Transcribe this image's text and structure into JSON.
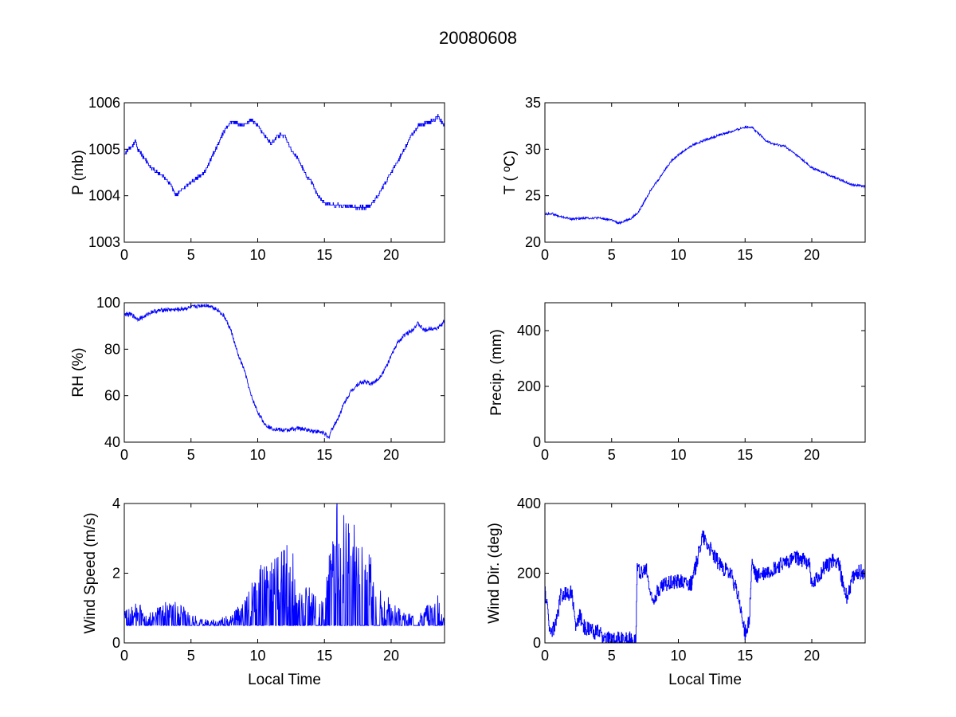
{
  "figure_title": "20080608",
  "colors": {
    "line": "#0000ff",
    "axes": "#000000",
    "background": "#ffffff"
  },
  "chart_data": [
    {
      "id": "pressure",
      "type": "line",
      "title": "",
      "xlabel": "",
      "ylabel": "P (mb)",
      "xlim": [
        0,
        24
      ],
      "ylim": [
        1003,
        1006
      ],
      "xticks": [
        0,
        5,
        10,
        15,
        20
      ],
      "yticks": [
        1003,
        1004,
        1005,
        1006
      ],
      "style": "step",
      "noise": 0.035,
      "series": [
        {
          "name": "P",
          "x": [
            0,
            0.3,
            0.7,
            0.8,
            1.0,
            1.5,
            2.0,
            2.5,
            3.0,
            3.5,
            3.9,
            4.2,
            5.0,
            5.5,
            6.0,
            6.5,
            7.0,
            7.5,
            8.0,
            9.0,
            9.5,
            10.0,
            10.5,
            11.0,
            11.5,
            12.0,
            12.5,
            13.0,
            13.5,
            14.0,
            14.5,
            15.0,
            15.5,
            16.0,
            17.0,
            18.0,
            18.5,
            19.0,
            20.0,
            21.0,
            21.5,
            22.0,
            23.0,
            23.5,
            24.0
          ],
          "y": [
            1004.9,
            1005.0,
            1005.1,
            1005.2,
            1005.0,
            1004.8,
            1004.6,
            1004.5,
            1004.4,
            1004.2,
            1004.0,
            1004.1,
            1004.3,
            1004.4,
            1004.5,
            1004.8,
            1005.1,
            1005.4,
            1005.6,
            1005.5,
            1005.65,
            1005.5,
            1005.3,
            1005.1,
            1005.3,
            1005.3,
            1005.0,
            1004.8,
            1004.5,
            1004.3,
            1004.0,
            1003.85,
            1003.8,
            1003.8,
            1003.75,
            1003.75,
            1003.8,
            1004.0,
            1004.5,
            1005.0,
            1005.3,
            1005.5,
            1005.6,
            1005.7,
            1005.5
          ]
        }
      ]
    },
    {
      "id": "temperature",
      "type": "line",
      "title": "",
      "xlabel": "",
      "ylabel": "T ( ºC)",
      "xlim": [
        0,
        24
      ],
      "ylim": [
        20,
        35
      ],
      "xticks": [
        0,
        5,
        10,
        15,
        20
      ],
      "yticks": [
        20,
        25,
        30,
        35
      ],
      "style": "line",
      "noise": 0.12,
      "series": [
        {
          "name": "T",
          "x": [
            0,
            0.5,
            1.0,
            2.0,
            3.0,
            4.0,
            5.0,
            5.5,
            6.0,
            6.5,
            7.0,
            7.5,
            8.0,
            8.5,
            9.0,
            9.5,
            10.0,
            11.0,
            12.0,
            13.0,
            14.0,
            15.0,
            15.5,
            16.0,
            16.5,
            17.0,
            18.0,
            19.0,
            20.0,
            21.0,
            22.0,
            23.0,
            24.0
          ],
          "y": [
            23.0,
            23.1,
            22.8,
            22.5,
            22.6,
            22.6,
            22.4,
            22.0,
            22.3,
            22.6,
            23.2,
            24.5,
            25.8,
            26.7,
            27.8,
            28.8,
            29.4,
            30.4,
            31.0,
            31.5,
            31.9,
            32.4,
            32.4,
            31.7,
            31.0,
            30.6,
            30.3,
            29.2,
            28.0,
            27.4,
            26.8,
            26.2,
            26.0
          ]
        }
      ]
    },
    {
      "id": "humidity",
      "type": "line",
      "title": "",
      "xlabel": "",
      "ylabel": "RH (%)",
      "xlim": [
        0,
        24
      ],
      "ylim": [
        40,
        100
      ],
      "xticks": [
        0,
        5,
        10,
        15,
        20
      ],
      "yticks": [
        40,
        60,
        80,
        100
      ],
      "style": "line",
      "noise": 0.9,
      "series": [
        {
          "name": "RH",
          "x": [
            0,
            0.5,
            1.0,
            1.5,
            2.0,
            3.0,
            4.0,
            5.0,
            6.0,
            6.5,
            7.0,
            7.5,
            8.0,
            8.5,
            9.0,
            9.5,
            10.0,
            10.5,
            11.0,
            12.0,
            13.0,
            14.0,
            15.0,
            15.3,
            15.5,
            16.0,
            16.5,
            17.0,
            17.5,
            18.0,
            18.5,
            19.0,
            19.5,
            20.0,
            20.5,
            21.0,
            21.5,
            22.0,
            22.5,
            23.0,
            23.5,
            24.0
          ],
          "y": [
            95.0,
            95.0,
            93.0,
            94.0,
            96.0,
            97.0,
            97.0,
            98.0,
            99.0,
            98.5,
            97.0,
            94.0,
            88.0,
            78.0,
            71.0,
            60.0,
            53.0,
            48.0,
            46.0,
            45.0,
            46.0,
            45.0,
            44.0,
            41.5,
            45.0,
            50.0,
            57.0,
            62.0,
            65.0,
            66.0,
            65.0,
            67.0,
            71.0,
            77.0,
            83.0,
            86.0,
            88.0,
            91.0,
            88.0,
            89.0,
            89.0,
            92.0
          ]
        }
      ]
    },
    {
      "id": "precipitation",
      "type": "line",
      "title": "",
      "xlabel": "",
      "ylabel": "Precip. (mm)",
      "xlim": [
        0,
        24
      ],
      "ylim": [
        0,
        500
      ],
      "xticks": [
        0,
        5,
        10,
        15,
        20
      ],
      "yticks": [
        0,
        200,
        400
      ],
      "style": "line",
      "noise": 0,
      "series": []
    },
    {
      "id": "wind-speed",
      "type": "line",
      "title": "",
      "xlabel": "Local Time",
      "ylabel": "Wind Speed (m/s)",
      "xlim": [
        0,
        24
      ],
      "ylim": [
        0,
        4
      ],
      "xticks": [
        0,
        5,
        10,
        15,
        20
      ],
      "yticks": [
        0,
        2,
        4
      ],
      "style": "spiky",
      "noise": 0,
      "floor": 0.5,
      "series": [
        {
          "name": "Wind Speed",
          "x": [
            0,
            1,
            2,
            3,
            4,
            5,
            6,
            7,
            8,
            9,
            9.5,
            10,
            11,
            12,
            12.5,
            13,
            14,
            15,
            15.5,
            16,
            16.5,
            17,
            18,
            19,
            20,
            21,
            22,
            23,
            23.5,
            24
          ],
          "y": [
            0.8,
            0.9,
            0.7,
            0.9,
            0.9,
            0.7,
            0.6,
            0.6,
            0.7,
            0.9,
            1.2,
            1.5,
            1.5,
            1.8,
            1.9,
            1.3,
            1.1,
            1.0,
            2.1,
            2.6,
            2.5,
            2.3,
            2.0,
            1.2,
            0.9,
            0.7,
            0.7,
            0.9,
            1.0,
            0.6
          ]
        }
      ]
    },
    {
      "id": "wind-direction",
      "type": "line",
      "title": "",
      "xlabel": "Local Time",
      "ylabel": "Wind Dir. (deg)",
      "xlim": [
        0,
        24
      ],
      "ylim": [
        0,
        400
      ],
      "xticks": [
        0,
        5,
        10,
        15,
        20
      ],
      "yticks": [
        0,
        200,
        400
      ],
      "style": "step",
      "noise": 22,
      "series": [
        {
          "name": "Wind Dir.",
          "x": [
            0,
            0.2,
            0.4,
            0.8,
            1.2,
            2.0,
            2.3,
            2.6,
            3.0,
            3.5,
            4.0,
            4.5,
            5.0,
            5.5,
            6.0,
            6.8,
            6.9,
            7.3,
            7.6,
            8.0,
            8.5,
            9.0,
            10.0,
            11.0,
            11.8,
            12.5,
            13.0,
            13.5,
            14.0,
            14.5,
            14.8,
            15.0,
            15.3,
            15.5,
            15.8,
            16.5,
            17.0,
            18.0,
            19.0,
            19.8,
            20.0,
            21.0,
            21.5,
            22.0,
            22.3,
            22.6,
            23.0,
            23.5,
            24.0
          ],
          "y": [
            150,
            90,
            30,
            50,
            140,
            145,
            40,
            80,
            40,
            35,
            30,
            10,
            10,
            10,
            10,
            10,
            210,
            200,
            210,
            120,
            150,
            170,
            180,
            170,
            310,
            260,
            230,
            210,
            190,
            130,
            60,
            30,
            60,
            230,
            190,
            200,
            210,
            230,
            245,
            230,
            160,
            220,
            235,
            235,
            170,
            130,
            180,
            205,
            200
          ]
        }
      ]
    }
  ]
}
